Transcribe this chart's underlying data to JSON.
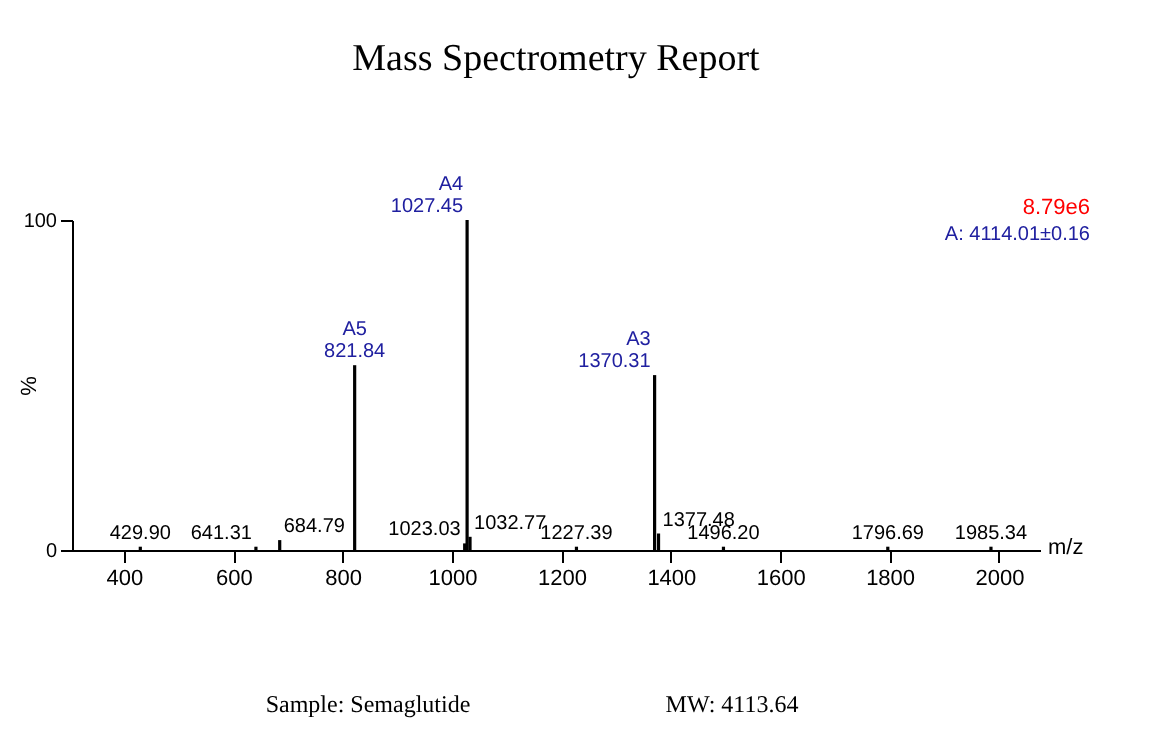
{
  "chart_data": {
    "type": "bar",
    "title": "Mass Spectrometry Report",
    "xlabel": "m/z",
    "ylabel": "%",
    "x": [
      429.9,
      641.31,
      684.79,
      821.84,
      1023.03,
      1027.45,
      1032.77,
      1227.39,
      1370.31,
      1377.48,
      1496.2,
      1796.69,
      1985.34
    ],
    "values": [
      1,
      1,
      3,
      56,
      2,
      100,
      4,
      1,
      53,
      5,
      1,
      1,
      1
    ],
    "color": "#000000",
    "annotations": [
      {
        "text": "429.90",
        "x": 429.9,
        "y": 1
      },
      {
        "text": "641.31",
        "x": 641.31,
        "y": 1
      },
      {
        "text": "684.79",
        "x": 684.79,
        "y": 3
      },
      {
        "text": "821.84",
        "x": 821.84,
        "y": 56
      },
      {
        "text": "1023.03",
        "x": 1023.03,
        "y": 2
      },
      {
        "text": "1027.45",
        "x": 1027.45,
        "y": 100
      },
      {
        "text": "1032.77",
        "x": 1032.77,
        "y": 4
      },
      {
        "text": "1227.39",
        "x": 1227.39,
        "y": 1
      },
      {
        "text": "1370.31",
        "x": 1370.31,
        "y": 53
      },
      {
        "text": "1377.48",
        "x": 1377.48,
        "y": 5
      },
      {
        "text": "1496.20",
        "x": 1496.2,
        "y": 1
      },
      {
        "text": "1796.69",
        "x": 1796.69,
        "y": 1
      },
      {
        "text": "1985.34",
        "x": 1985.34,
        "y": 1
      },
      {
        "text": "A5",
        "x": 821.84,
        "y": 56
      },
      {
        "text": "A4",
        "x": 1027.45,
        "y": 100
      },
      {
        "text": "A3",
        "x": 1370.31,
        "y": 53
      },
      "8.79e6",
      "A:   4114.01±0.16",
      "Sample: Semaglutide",
      "MW: 4113.64"
    ],
    "xlim": [
      305,
      2075
    ],
    "xticks": [
      400,
      600,
      800,
      1000,
      1200,
      1400,
      1600,
      1800,
      2000
    ],
    "ylim": [
      0,
      100
    ],
    "yticks": [
      0,
      100
    ],
    "grid": false
  }
}
